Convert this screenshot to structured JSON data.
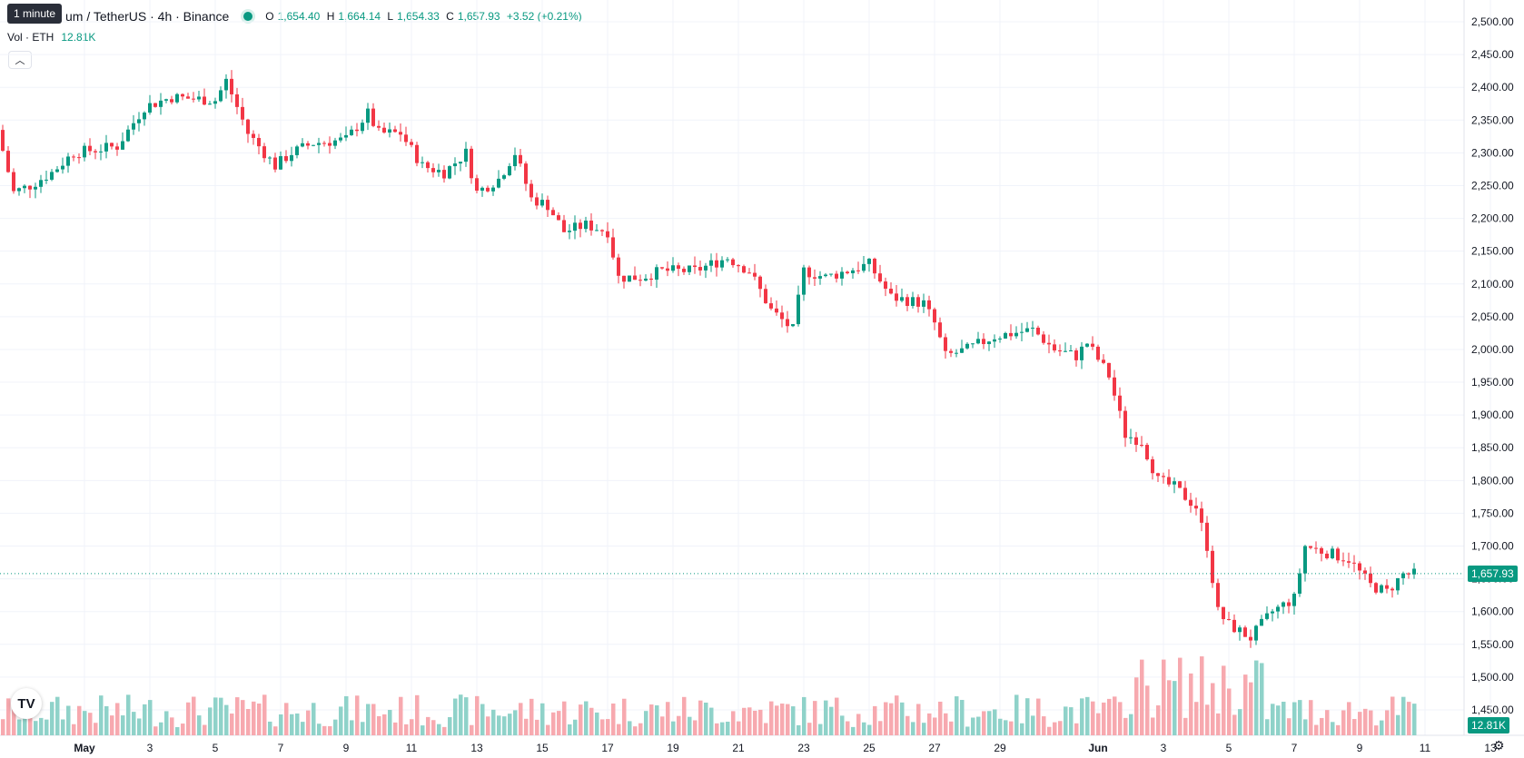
{
  "header": {
    "title": "um / TetherUS · 4h · Binance",
    "ohlc": {
      "o_label": "O",
      "o": "1,654.40",
      "h_label": "H",
      "h": "1,664.14",
      "l_label": "L",
      "l": "1,654.33",
      "c_label": "C",
      "c": "1,657.93",
      "change": "+3.52 (+0.21%)"
    },
    "tooltip": "1 minute",
    "volume_label": "Vol · ETH",
    "volume_value": "12.81K"
  },
  "price_tag": "1,657.93",
  "volume_tag": "12.81K",
  "colors": {
    "up": "#089981",
    "down": "#f23645",
    "up_vol": "#8fd2c9",
    "down_vol": "#f7a9af"
  },
  "icons": {
    "logo": "tradingview-logo-icon",
    "collapse": "chevron-up-icon",
    "settings": "gear-icon"
  },
  "logo_text": "TV",
  "chart_data": {
    "type": "candlestick",
    "y_ticks": [
      "2,500.00",
      "2,450.00",
      "2,400.00",
      "2,350.00",
      "2,300.00",
      "2,250.00",
      "2,200.00",
      "2,150.00",
      "2,100.00",
      "2,050.00",
      "2,000.00",
      "1,950.00",
      "1,900.00",
      "1,850.00",
      "1,800.00",
      "1,750.00",
      "1,700.00",
      "1,650.00",
      "1,600.00",
      "1,550.00",
      "1,500.00",
      "1,450.00"
    ],
    "ylim": [
      1420,
      2520
    ],
    "x_ticks": [
      {
        "label": "May",
        "bold": true,
        "idx": 10
      },
      {
        "label": "3",
        "idx": 22
      },
      {
        "label": "5",
        "idx": 34
      },
      {
        "label": "7",
        "idx": 46
      },
      {
        "label": "9",
        "idx": 58
      },
      {
        "label": "11",
        "idx": 70
      },
      {
        "label": "13",
        "idx": 82
      },
      {
        "label": "15",
        "idx": 94
      },
      {
        "label": "17",
        "idx": 106
      },
      {
        "label": "19",
        "idx": 118
      },
      {
        "label": "21",
        "idx": 130
      },
      {
        "label": "23",
        "idx": 142
      },
      {
        "label": "25",
        "idx": 154
      },
      {
        "label": "27",
        "idx": 166
      },
      {
        "label": "29",
        "idx": 178
      },
      {
        "label": "Jun",
        "bold": true,
        "idx": 196
      },
      {
        "label": "3",
        "idx": 208
      },
      {
        "label": "5",
        "idx": 220
      },
      {
        "label": "7",
        "idx": 232
      },
      {
        "label": "9",
        "idx": 244
      },
      {
        "label": "11",
        "idx": 256
      },
      {
        "label": "13",
        "idx": 268
      }
    ],
    "last_price": 1657.93,
    "anchors": [
      [
        0,
        2335
      ],
      [
        3,
        2240
      ],
      [
        6,
        2250
      ],
      [
        10,
        2270
      ],
      [
        14,
        2300
      ],
      [
        22,
        2310
      ],
      [
        27,
        2370
      ],
      [
        32,
        2385
      ],
      [
        40,
        2380
      ],
      [
        42,
        2410
      ],
      [
        46,
        2330
      ],
      [
        51,
        2280
      ],
      [
        54,
        2300
      ],
      [
        58,
        2315
      ],
      [
        64,
        2320
      ],
      [
        68,
        2360
      ],
      [
        70,
        2330
      ],
      [
        74,
        2330
      ],
      [
        78,
        2280
      ],
      [
        82,
        2270
      ],
      [
        86,
        2300
      ],
      [
        88,
        2240
      ],
      [
        92,
        2260
      ],
      [
        95,
        2300
      ],
      [
        98,
        2230
      ],
      [
        101,
        2220
      ],
      [
        104,
        2180
      ],
      [
        108,
        2190
      ],
      [
        112,
        2180
      ],
      [
        114,
        2110
      ],
      [
        118,
        2110
      ],
      [
        122,
        2120
      ],
      [
        128,
        2120
      ],
      [
        134,
        2140
      ],
      [
        138,
        2120
      ],
      [
        142,
        2060
      ],
      [
        146,
        2030
      ],
      [
        148,
        2120
      ],
      [
        152,
        2110
      ],
      [
        156,
        2120
      ],
      [
        160,
        2130
      ],
      [
        164,
        2080
      ],
      [
        170,
        2070
      ],
      [
        172,
        2040
      ],
      [
        174,
        1990
      ],
      [
        178,
        2000
      ],
      [
        183,
        2020
      ],
      [
        190,
        2030
      ],
      [
        194,
        2000
      ],
      [
        198,
        1990
      ],
      [
        200,
        2010
      ],
      [
        204,
        1960
      ],
      [
        207,
        1870
      ],
      [
        210,
        1860
      ],
      [
        213,
        1800
      ],
      [
        216,
        1790
      ],
      [
        220,
        1760
      ],
      [
        222,
        1700
      ],
      [
        224,
        1600
      ],
      [
        226,
        1580
      ],
      [
        230,
        1560
      ],
      [
        234,
        1600
      ],
      [
        238,
        1620
      ],
      [
        240,
        1700
      ],
      [
        244,
        1690
      ],
      [
        248,
        1680
      ],
      [
        252,
        1640
      ],
      [
        255,
        1630
      ],
      [
        258,
        1657
      ]
    ],
    "n_candles": 260
  }
}
